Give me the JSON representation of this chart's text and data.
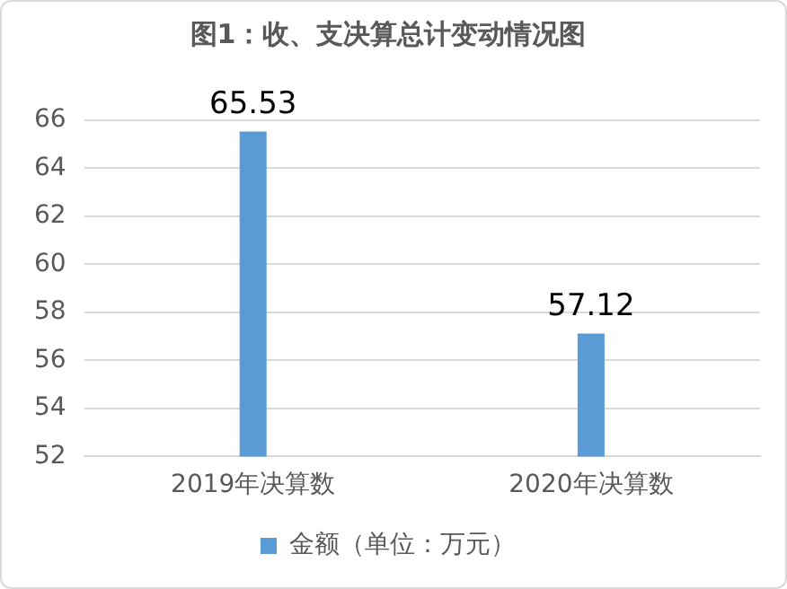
{
  "chart_data": {
    "type": "bar",
    "title": "图1：收、支决算总计变动情况图",
    "categories": [
      "2019年决算数",
      "2020年决算数"
    ],
    "series": [
      {
        "name": "金额（单位：万元）",
        "color": "#5b9bd5",
        "values": [
          65.53,
          57.12
        ]
      }
    ],
    "ylim": [
      52,
      66
    ],
    "yticks": [
      52,
      54,
      56,
      58,
      60,
      62,
      64,
      66
    ],
    "grid": "y",
    "legend": "bottom",
    "data_labels": true
  }
}
